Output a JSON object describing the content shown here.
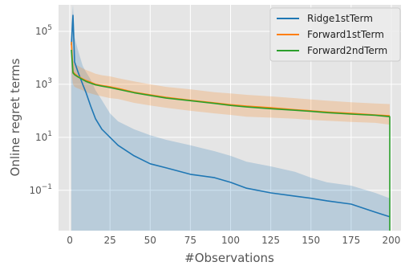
{
  "chart_data": {
    "type": "line",
    "title": "",
    "xlabel": "#Observations",
    "ylabel": "Online regret terms",
    "xlim": [
      -7,
      206
    ],
    "ylim": [
      0.003,
      1000000
    ],
    "yscale": "log",
    "grid": true,
    "legend_position": "top-right",
    "x_ticks": [
      0,
      25,
      50,
      75,
      100,
      125,
      150,
      175,
      200
    ],
    "x_tick_labels": [
      "0",
      "25",
      "50",
      "75",
      "100",
      "125",
      "150",
      "175",
      "200"
    ],
    "y_ticks": [
      0.1,
      10,
      1000,
      100000
    ],
    "y_tick_base": "10",
    "y_tick_exponents": [
      "−1",
      "1",
      "3",
      "5"
    ],
    "series": [
      {
        "name": "Ridge1stTerm",
        "color": "#1f77b4",
        "x": [
          1,
          2,
          3,
          5,
          8,
          10,
          13,
          16,
          20,
          25,
          30,
          40,
          50,
          60,
          75,
          90,
          100,
          110,
          125,
          140,
          150,
          160,
          175,
          190,
          199
        ],
        "y": [
          30000,
          400000,
          7000,
          3000,
          1000,
          500,
          150,
          50,
          20,
          10,
          5,
          2,
          1,
          0.7,
          0.4,
          0.3,
          0.2,
          0.12,
          0.08,
          0.06,
          0.05,
          0.04,
          0.03,
          0.015,
          0.01
        ],
        "band_lower": [
          1e-09,
          1e-09,
          1e-09,
          1e-09,
          1e-09,
          1e-09,
          1e-09,
          1e-09,
          1e-09,
          1e-09,
          1e-09,
          1e-09,
          1e-09,
          1e-09,
          1e-09,
          1e-09,
          1e-09,
          1e-09,
          1e-09,
          1e-09,
          1e-09,
          1e-09,
          1e-09,
          1e-09,
          1e-09
        ],
        "band_upper": [
          200000,
          1000000,
          60000,
          20000,
          5000,
          3000,
          1500,
          600,
          250,
          80,
          40,
          20,
          12,
          8,
          5,
          3,
          2,
          1.2,
          0.8,
          0.5,
          0.3,
          0.2,
          0.15,
          0.08,
          0.05
        ]
      },
      {
        "name": "Forward1stTerm",
        "color": "#ff7f0e",
        "x": [
          1,
          2,
          3,
          5,
          8,
          10,
          13,
          16,
          20,
          25,
          30,
          40,
          50,
          60,
          75,
          90,
          100,
          110,
          125,
          140,
          150,
          160,
          175,
          190,
          199
        ],
        "y": [
          40000,
          3000,
          2500,
          2000,
          1600,
          1400,
          1200,
          1000,
          900,
          800,
          700,
          500,
          400,
          320,
          250,
          200,
          170,
          150,
          130,
          110,
          100,
          90,
          80,
          70,
          65
        ],
        "band_lower": [
          3000,
          1000,
          800,
          700,
          600,
          500,
          450,
          400,
          350,
          300,
          280,
          200,
          160,
          130,
          100,
          80,
          70,
          60,
          55,
          50,
          45,
          42,
          38,
          35,
          30
        ],
        "band_upper": [
          100000,
          8000,
          6000,
          5000,
          4000,
          3500,
          3000,
          2500,
          2200,
          2000,
          1700,
          1300,
          1000,
          800,
          650,
          500,
          450,
          400,
          350,
          300,
          270,
          240,
          210,
          190,
          180
        ]
      },
      {
        "name": "Forward2ndTerm",
        "color": "#2ca02c",
        "x": [
          1,
          2,
          3,
          5,
          8,
          10,
          13,
          16,
          20,
          25,
          30,
          40,
          50,
          60,
          75,
          90,
          100,
          110,
          125,
          140,
          150,
          160,
          175,
          190,
          199,
          199
        ],
        "y": [
          20000,
          2700,
          2300,
          1900,
          1500,
          1300,
          1100,
          950,
          850,
          750,
          650,
          480,
          380,
          300,
          240,
          190,
          160,
          140,
          120,
          105,
          95,
          85,
          75,
          68,
          60,
          0.003
        ]
      }
    ]
  }
}
